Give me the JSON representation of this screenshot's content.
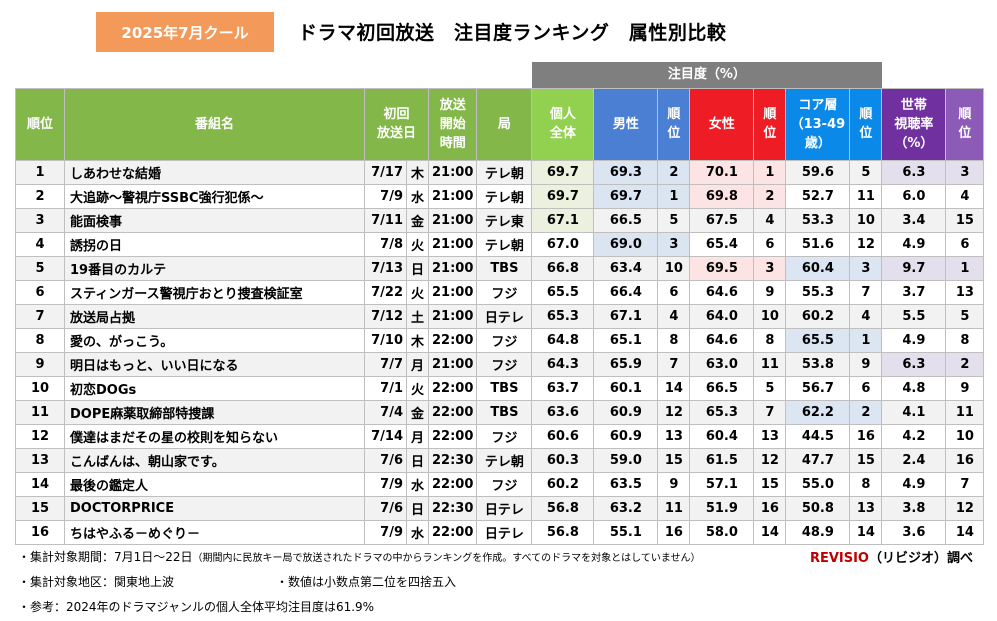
{
  "badge": "2025年7月クール",
  "title": "ドラマ初回放送　注目度ランキング　属性別比較",
  "table": {
    "group_header": "注目度（%）",
    "headers": {
      "rank": "順位",
      "program": "番組名",
      "date": "初回\n放送日",
      "time": "放送\n開始\n時間",
      "station": "局",
      "individual": "個人\n全体",
      "male": "男性",
      "male_rank": "順\n位",
      "female": "女性",
      "female_rank": "順\n位",
      "core": "コア層\n（13-49\n歳）",
      "core_rank": "順\n位",
      "household": "世帯\n視聴率\n（%）",
      "household_rank": "順\n位"
    },
    "rows": [
      {
        "rank": "1",
        "name": "しあわせな結婚",
        "date": "7/17",
        "dow": "木",
        "time": "21:00",
        "station": "テレ朝",
        "ind": "69.7",
        "male": "69.3",
        "male_rank": "2",
        "female": "70.1",
        "female_rank": "1",
        "core": "59.6",
        "core_rank": "5",
        "hh": "6.3",
        "hh_rank": "3"
      },
      {
        "rank": "2",
        "name": "大追跡～警視庁SSBC強行犯係～",
        "date": "7/9",
        "dow": "水",
        "time": "21:00",
        "station": "テレ朝",
        "ind": "69.7",
        "male": "69.7",
        "male_rank": "1",
        "female": "69.8",
        "female_rank": "2",
        "core": "52.7",
        "core_rank": "11",
        "hh": "6.0",
        "hh_rank": "4"
      },
      {
        "rank": "3",
        "name": "能面検事",
        "date": "7/11",
        "dow": "金",
        "time": "21:00",
        "station": "テレ東",
        "ind": "67.1",
        "male": "66.5",
        "male_rank": "5",
        "female": "67.5",
        "female_rank": "4",
        "core": "53.3",
        "core_rank": "10",
        "hh": "3.4",
        "hh_rank": "15"
      },
      {
        "rank": "4",
        "name": "誘拐の日",
        "date": "7/8",
        "dow": "火",
        "time": "21:00",
        "station": "テレ朝",
        "ind": "67.0",
        "male": "69.0",
        "male_rank": "3",
        "female": "65.4",
        "female_rank": "6",
        "core": "51.6",
        "core_rank": "12",
        "hh": "4.9",
        "hh_rank": "6"
      },
      {
        "rank": "5",
        "name": "19番目のカルテ",
        "date": "7/13",
        "dow": "日",
        "time": "21:00",
        "station": "TBS",
        "ind": "66.8",
        "male": "63.4",
        "male_rank": "10",
        "female": "69.5",
        "female_rank": "3",
        "core": "60.4",
        "core_rank": "3",
        "hh": "9.7",
        "hh_rank": "1"
      },
      {
        "rank": "6",
        "name": "スティンガース警視庁おとり捜査検証室",
        "date": "7/22",
        "dow": "火",
        "time": "21:00",
        "station": "フジ",
        "ind": "65.5",
        "male": "66.4",
        "male_rank": "6",
        "female": "64.6",
        "female_rank": "9",
        "core": "55.3",
        "core_rank": "7",
        "hh": "3.7",
        "hh_rank": "13"
      },
      {
        "rank": "7",
        "name": "放送局占拠",
        "date": "7/12",
        "dow": "土",
        "time": "21:00",
        "station": "日テレ",
        "ind": "65.3",
        "male": "67.1",
        "male_rank": "4",
        "female": "64.0",
        "female_rank": "10",
        "core": "60.2",
        "core_rank": "4",
        "hh": "5.5",
        "hh_rank": "5"
      },
      {
        "rank": "8",
        "name": "愛の、がっこう。",
        "date": "7/10",
        "dow": "木",
        "time": "22:00",
        "station": "フジ",
        "ind": "64.8",
        "male": "65.1",
        "male_rank": "8",
        "female": "64.6",
        "female_rank": "8",
        "core": "65.5",
        "core_rank": "1",
        "hh": "4.9",
        "hh_rank": "8"
      },
      {
        "rank": "9",
        "name": "明日はもっと、いい日になる",
        "date": "7/7",
        "dow": "月",
        "time": "21:00",
        "station": "フジ",
        "ind": "64.3",
        "male": "65.9",
        "male_rank": "7",
        "female": "63.0",
        "female_rank": "11",
        "core": "53.8",
        "core_rank": "9",
        "hh": "6.3",
        "hh_rank": "2"
      },
      {
        "rank": "10",
        "name": "初恋DOGs",
        "date": "7/1",
        "dow": "火",
        "time": "22:00",
        "station": "TBS",
        "ind": "63.7",
        "male": "60.1",
        "male_rank": "14",
        "female": "66.5",
        "female_rank": "5",
        "core": "56.7",
        "core_rank": "6",
        "hh": "4.8",
        "hh_rank": "9"
      },
      {
        "rank": "11",
        "name": "DOPE麻薬取締部特捜課",
        "date": "7/4",
        "dow": "金",
        "time": "22:00",
        "station": "TBS",
        "ind": "63.6",
        "male": "60.9",
        "male_rank": "12",
        "female": "65.3",
        "female_rank": "7",
        "core": "62.2",
        "core_rank": "2",
        "hh": "4.1",
        "hh_rank": "11"
      },
      {
        "rank": "12",
        "name": "僕達はまだその星の校則を知らない",
        "date": "7/14",
        "dow": "月",
        "time": "22:00",
        "station": "フジ",
        "ind": "60.6",
        "male": "60.9",
        "male_rank": "13",
        "female": "60.4",
        "female_rank": "13",
        "core": "44.5",
        "core_rank": "16",
        "hh": "4.2",
        "hh_rank": "10"
      },
      {
        "rank": "13",
        "name": "こんばんは、朝山家です。",
        "date": "7/6",
        "dow": "日",
        "time": "22:30",
        "station": "テレ朝",
        "ind": "60.3",
        "male": "59.0",
        "male_rank": "15",
        "female": "61.5",
        "female_rank": "12",
        "core": "47.7",
        "core_rank": "15",
        "hh": "2.4",
        "hh_rank": "16"
      },
      {
        "rank": "14",
        "name": "最後の鑑定人",
        "date": "7/9",
        "dow": "水",
        "time": "22:00",
        "station": "フジ",
        "ind": "60.2",
        "male": "63.5",
        "male_rank": "9",
        "female": "57.1",
        "female_rank": "15",
        "core": "55.0",
        "core_rank": "8",
        "hh": "4.9",
        "hh_rank": "7"
      },
      {
        "rank": "15",
        "name": "DOCTORPRICE",
        "date": "7/6",
        "dow": "日",
        "time": "22:30",
        "station": "日テレ",
        "ind": "56.8",
        "male": "63.2",
        "male_rank": "11",
        "female": "51.9",
        "female_rank": "16",
        "core": "50.8",
        "core_rank": "13",
        "hh": "3.8",
        "hh_rank": "12"
      },
      {
        "rank": "16",
        "name": "ちはやふる－めぐり－",
        "date": "7/9",
        "dow": "水",
        "time": "22:00",
        "station": "日テレ",
        "ind": "56.8",
        "male": "55.1",
        "male_rank": "16",
        "female": "58.0",
        "female_rank": "14",
        "core": "48.9",
        "core_rank": "14",
        "hh": "3.6",
        "hh_rank": "14"
      }
    ]
  },
  "notes": {
    "period_label": "・集計対象期間：7月1日～22日",
    "period_detail": "（期間内に民放キー局で放送されたドラマの中からランキングを作成。すべてのドラマを対象とはしていません）",
    "area": "・集計対象地区：関東地上波",
    "rounding": "・数値は小数点第二位を四捨五入",
    "reference": "・参考：2024年のドラマジャンルの個人全体平均注目度は61.9%",
    "brand_name": "REVISIO",
    "brand_suffix": "（リビジオ）調べ"
  }
}
